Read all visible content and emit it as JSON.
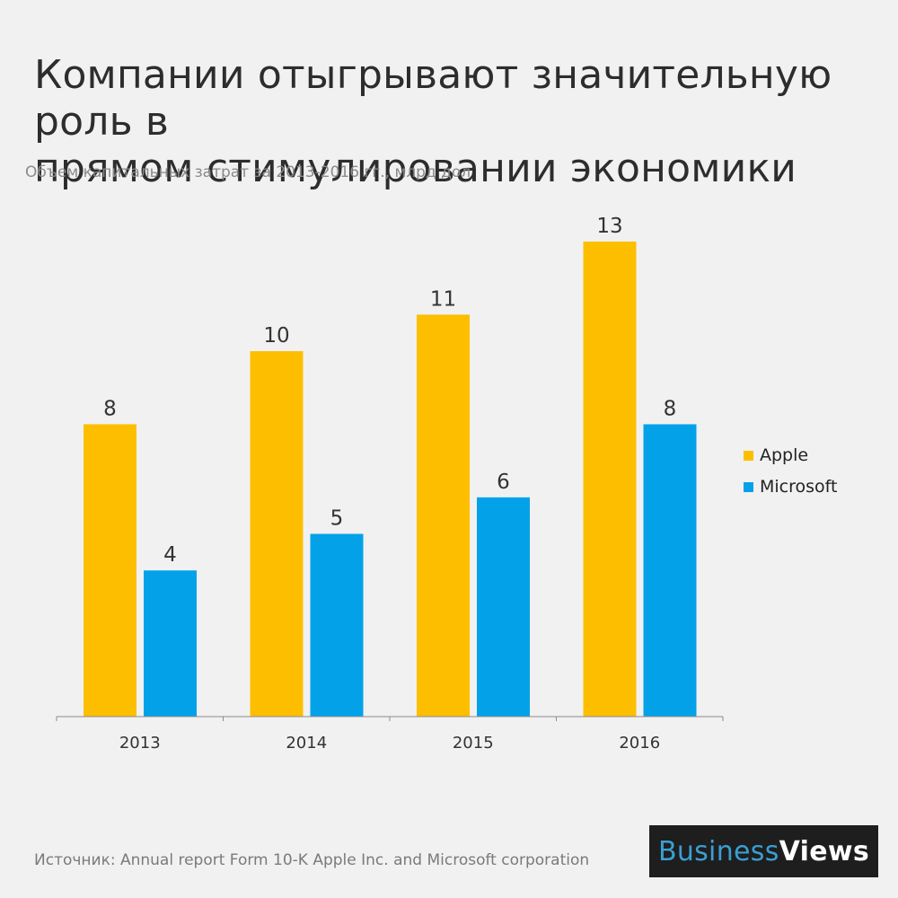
{
  "header": {
    "title_line1": "Компании отыгрывают значительную роль в",
    "title_line2": "прямом стимулировании экономики",
    "subtitle": "Объем капитальных затрат за 2013-2016  гг., млрд дол"
  },
  "chart_data": {
    "type": "bar",
    "title": "Компании отыгрывают значительную роль в прямом стимулировании экономики",
    "subtitle": "Объем капитальных затрат за 2013-2016  гг., млрд дол",
    "categories": [
      "2013",
      "2014",
      "2015",
      "2016"
    ],
    "series": [
      {
        "name": "Apple",
        "color": "#fdbe00",
        "values": [
          8,
          10,
          11,
          13
        ]
      },
      {
        "name": "Microsoft",
        "color": "#03a2e8",
        "values": [
          4,
          5,
          6,
          8
        ]
      }
    ],
    "ylim": [
      0,
      13
    ],
    "xlabel": "",
    "ylabel": "",
    "grid": false,
    "legend_position": "right"
  },
  "legend": {
    "items": [
      {
        "label": "Apple",
        "color": "#fdbe00"
      },
      {
        "label": "Microsoft",
        "color": "#03a2e8"
      }
    ]
  },
  "footer": {
    "source": "Источник: Annual report Form 10-K Apple Inc. and Microsoft corporation",
    "logo_business": "Business",
    "logo_views": "Views"
  }
}
